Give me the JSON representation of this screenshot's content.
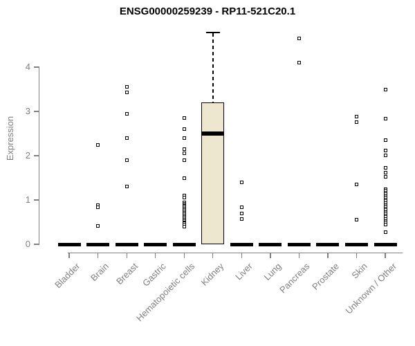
{
  "title": "ENSG00000259239 - RP11-521C20.1",
  "colors": {
    "box_fill": "#ECE7CE",
    "box_stroke": "#000000",
    "axis": "#7f7f7f",
    "title": "#000000"
  },
  "chart_data": {
    "type": "boxplot",
    "title": "ENSG00000259239 - RP11-521C20.1",
    "xlabel": "",
    "ylabel": "Expression",
    "ylim": [
      0,
      4.9
    ],
    "y_ticks": [
      0,
      1,
      2,
      3,
      4
    ],
    "grid": "off",
    "categories": [
      "Bladder",
      "Brain",
      "Breast",
      "Gastric",
      "Hematopoietic cells",
      "Kidney",
      "Liver",
      "Lung",
      "Pancreas",
      "Prostate",
      "Skin",
      "Unknown / Other"
    ],
    "groups": [
      {
        "category": "Bladder",
        "median": 0,
        "q1": 0,
        "q3": 0,
        "whisker_low": 0,
        "whisker_high": 0,
        "outliers": []
      },
      {
        "category": "Brain",
        "median": 0,
        "q1": 0,
        "q3": 0,
        "whisker_low": 0,
        "whisker_high": 0,
        "outliers": [
          2.25,
          0.88,
          0.83,
          0.42
        ]
      },
      {
        "category": "Breast",
        "median": 0,
        "q1": 0,
        "q3": 0,
        "whisker_low": 0,
        "whisker_high": 0,
        "outliers": [
          3.55,
          3.43,
          2.94,
          2.4,
          1.9,
          1.3
        ]
      },
      {
        "category": "Gastric",
        "median": 0,
        "q1": 0,
        "q3": 0,
        "whisker_low": 0,
        "whisker_high": 0,
        "outliers": []
      },
      {
        "category": "Hematopoietic cells",
        "median": 0,
        "q1": 0,
        "q3": 0,
        "whisker_low": 0,
        "whisker_high": 0,
        "outliers": [
          2.85,
          2.6,
          2.4,
          2.15,
          2.05,
          1.9,
          1.5,
          1.1,
          1.05,
          0.95,
          0.92,
          0.89,
          0.86,
          0.83,
          0.8,
          0.77,
          0.74,
          0.71,
          0.68,
          0.65,
          0.62,
          0.59,
          0.56,
          0.53,
          0.5,
          0.47,
          0.45,
          0.4
        ]
      },
      {
        "category": "Kidney",
        "median": 2.5,
        "q1": 0,
        "q3": 3.2,
        "whisker_low": 0,
        "whisker_high": 4.8,
        "outliers": []
      },
      {
        "category": "Liver",
        "median": 0,
        "q1": 0,
        "q3": 0,
        "whisker_low": 0,
        "whisker_high": 0,
        "outliers": [
          1.4,
          0.83,
          0.7,
          0.57
        ]
      },
      {
        "category": "Lung",
        "median": 0,
        "q1": 0,
        "q3": 0,
        "whisker_low": 0,
        "whisker_high": 0,
        "outliers": []
      },
      {
        "category": "Pancreas",
        "median": 0,
        "q1": 0,
        "q3": 0,
        "whisker_low": 0,
        "whisker_high": 0,
        "outliers": [
          4.65,
          4.1
        ]
      },
      {
        "category": "Prostate",
        "median": 0,
        "q1": 0,
        "q3": 0,
        "whisker_low": 0,
        "whisker_high": 0,
        "outliers": []
      },
      {
        "category": "Skin",
        "median": 0,
        "q1": 0,
        "q3": 0,
        "whisker_low": 0,
        "whisker_high": 0,
        "outliers": [
          2.88,
          2.76,
          1.35,
          0.55
        ]
      },
      {
        "category": "Unknown / Other",
        "median": 0,
        "q1": 0,
        "q3": 0,
        "whisker_low": 0,
        "whisker_high": 0,
        "outliers": [
          3.5,
          2.84,
          2.35,
          2.12,
          2.01,
          1.72,
          1.62,
          1.52,
          1.25,
          1.21,
          1.17,
          1.13,
          1.09,
          1.05,
          1.01,
          0.97,
          0.93,
          0.89,
          0.85,
          0.81,
          0.77,
          0.73,
          0.69,
          0.65,
          0.61,
          0.57,
          0.53,
          0.49,
          0.45,
          0.28
        ]
      }
    ]
  }
}
